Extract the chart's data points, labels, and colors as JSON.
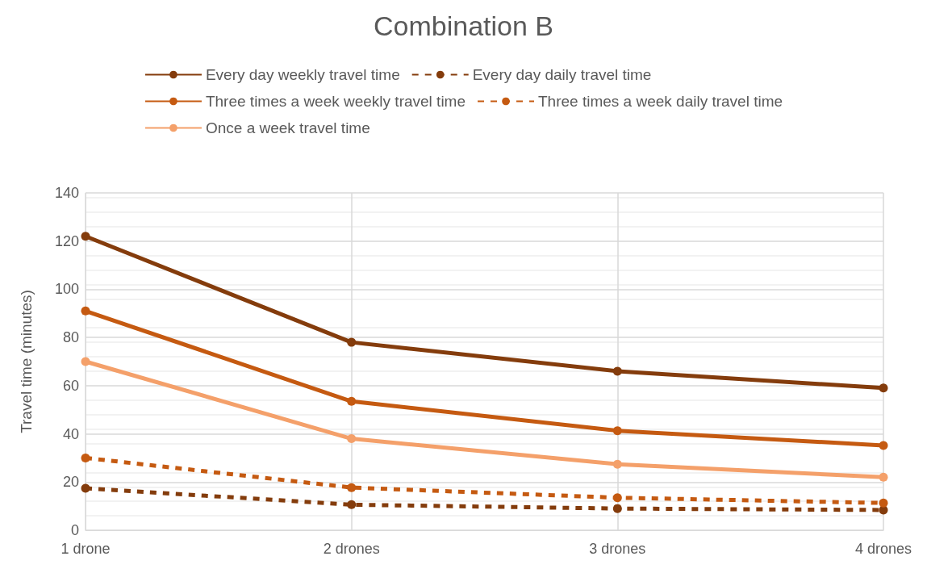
{
  "chart_data": {
    "type": "line",
    "title": "Combination B",
    "ylabel": "Travel time (minutes)",
    "categories": [
      "1 drone",
      "2 drones",
      "3 drones",
      "4 drones"
    ],
    "series": [
      {
        "name": "Every day weekly travel time",
        "color": "#843c0c",
        "line_style": "solid",
        "values": [
          122,
          78,
          66,
          59
        ]
      },
      {
        "name": "Every day daily travel time",
        "color": "#843c0c",
        "line_style": "dashed",
        "values": [
          17.4,
          10.6,
          9,
          8.4
        ]
      },
      {
        "name": "Three times a week weekly travel time",
        "color": "#c55a11",
        "line_style": "solid",
        "values": [
          91,
          53.5,
          41.3,
          35.2
        ]
      },
      {
        "name": "Three times a week daily travel time",
        "color": "#c55a11",
        "line_style": "dashed",
        "values": [
          30,
          17.7,
          13.5,
          11.3
        ]
      },
      {
        "name": "Once a week travel time",
        "color": "#f4a06a",
        "line_style": "solid",
        "values": [
          70,
          38,
          27.4,
          22
        ]
      }
    ],
    "ylim": [
      0,
      140
    ],
    "yticks": [
      0,
      20,
      40,
      60,
      80,
      100,
      120,
      140
    ],
    "grid": true,
    "legend": "top",
    "marker": "circle"
  }
}
